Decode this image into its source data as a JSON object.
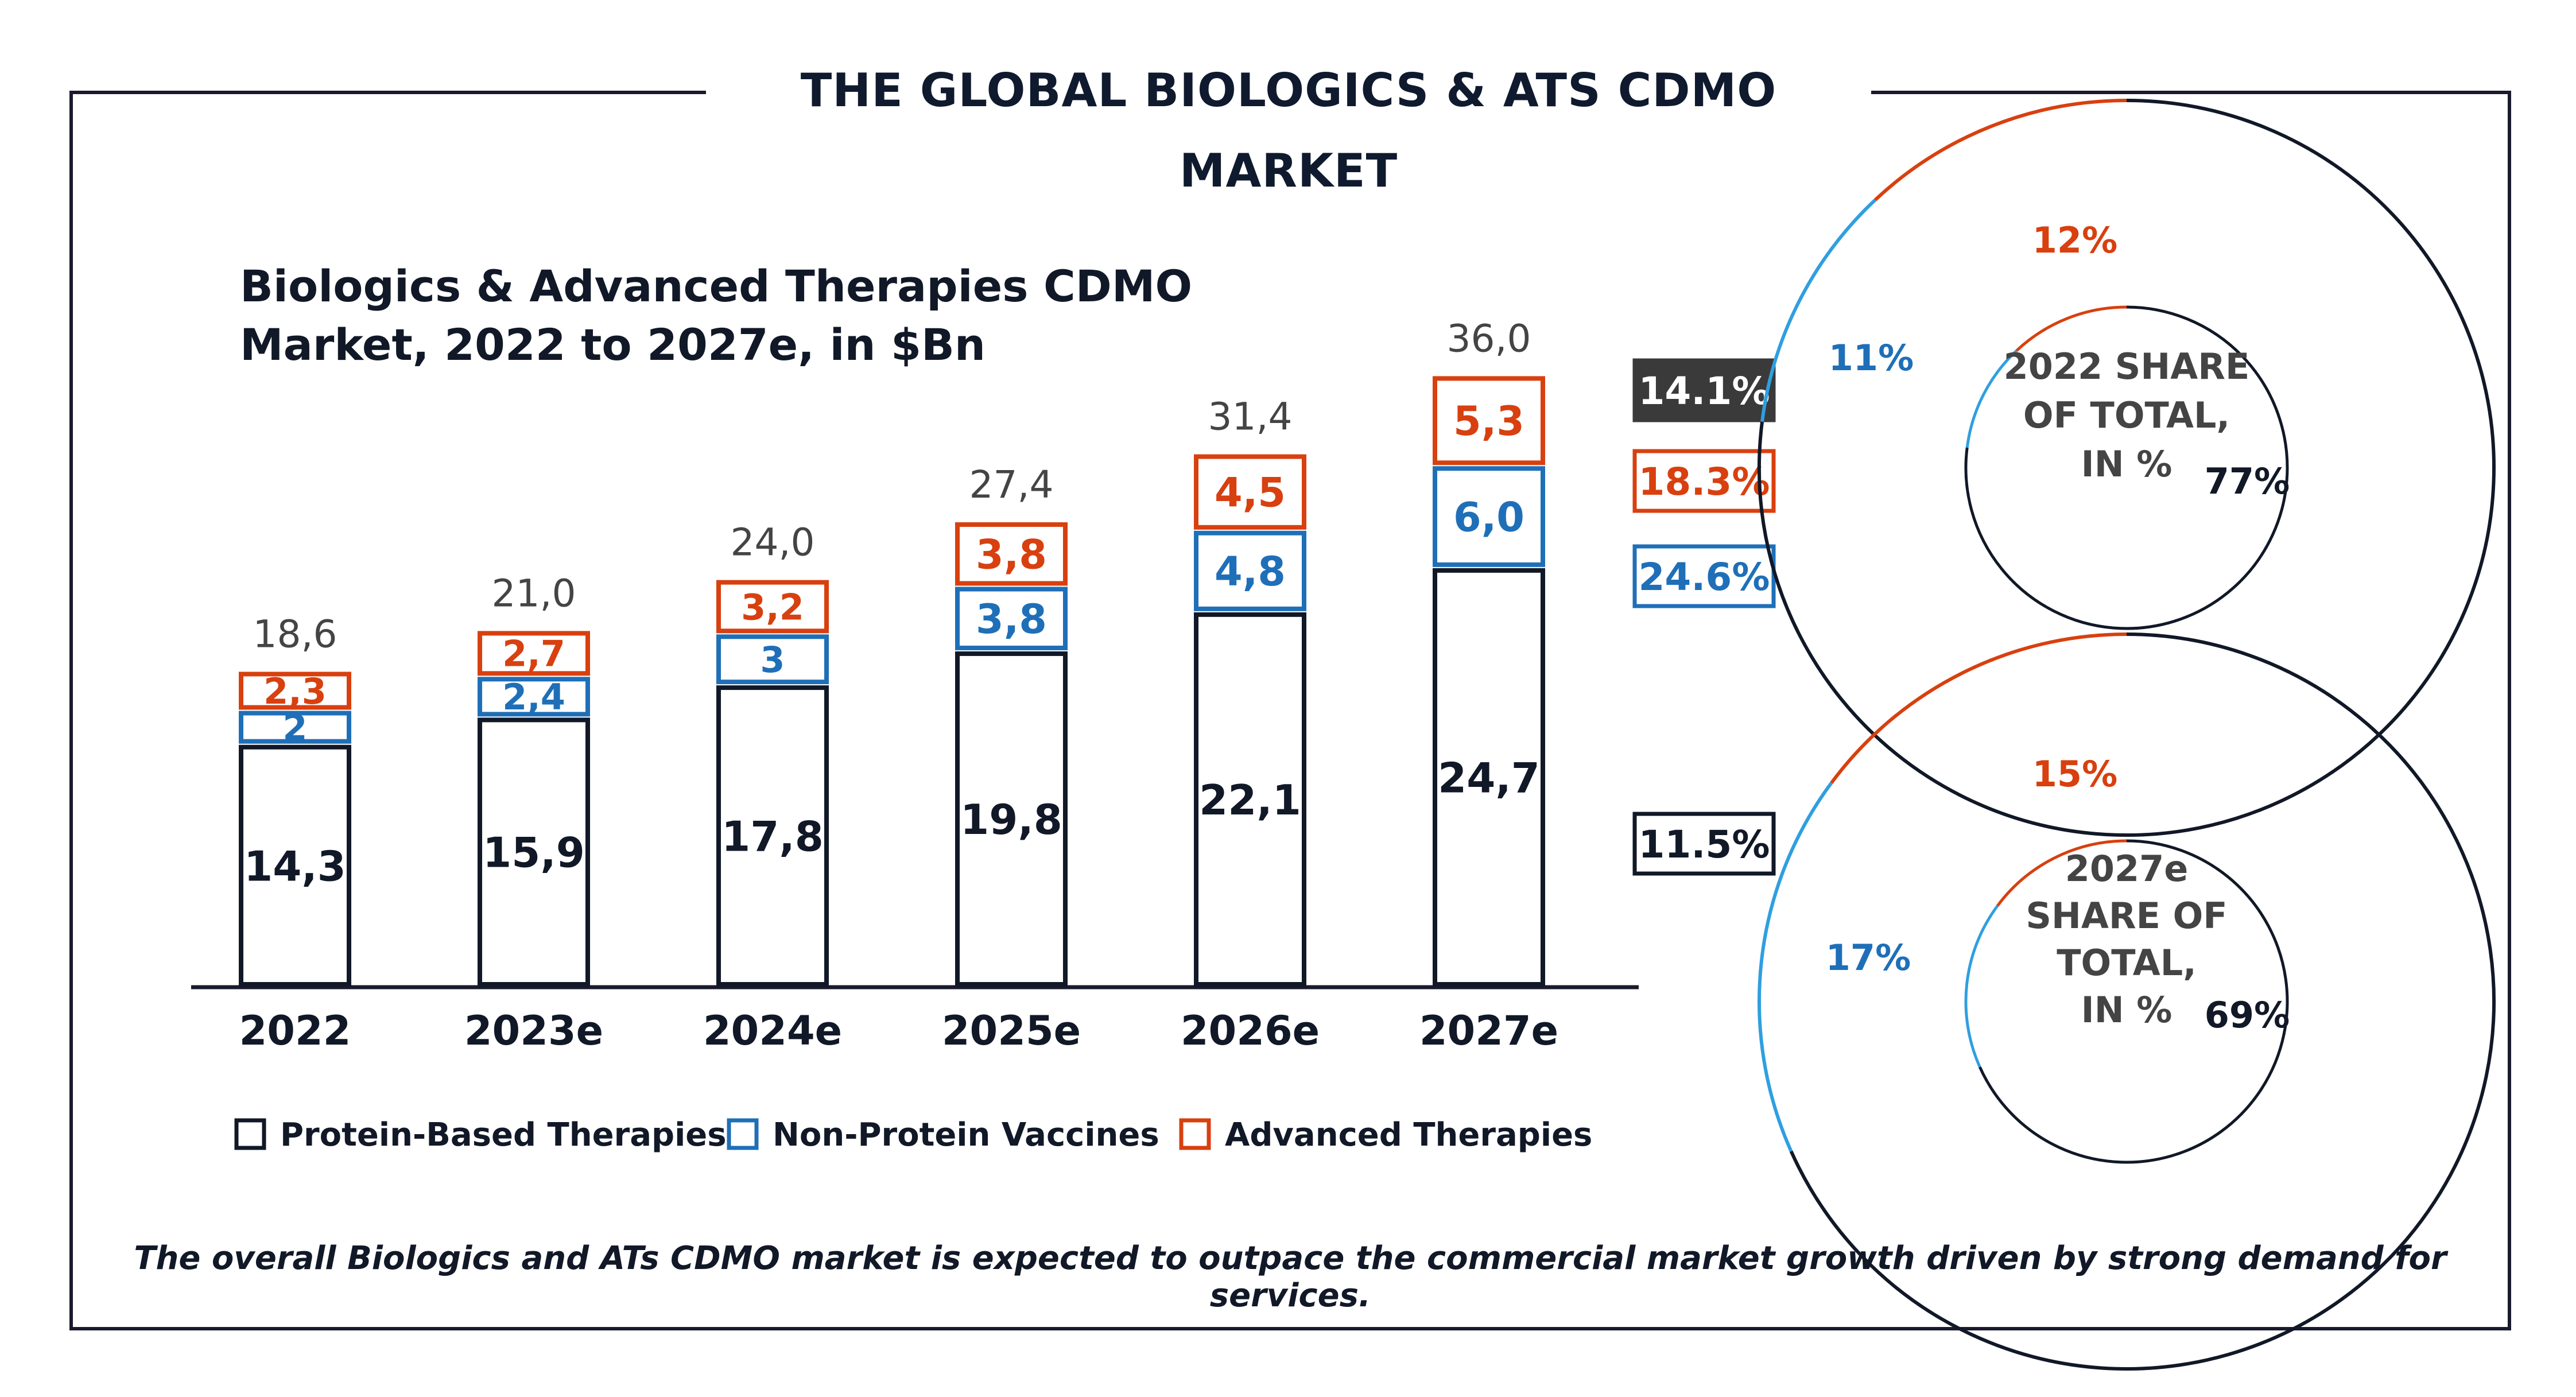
{
  "main_title": "THE GLOBAL BIOLOGICS & ATS CDMO MARKET",
  "footnote": "The overall Biologics and ATs CDMO market is expected to outpace the commercial market growth driven by strong demand for services.",
  "colors": {
    "protein": "#111827",
    "vaccine": "#1f6fb8",
    "advanced": "#d8400f",
    "total_text": "#444444",
    "cagr_total_bg": "#3a3a3a",
    "light_blue_arc": "#2f9fe0"
  },
  "chart_data": [
    {
      "type": "bar",
      "stacked": true,
      "title": "Biologics & Advanced Therapies CDMO Market, 2022 to 2027e, in $Bn",
      "title_lines": [
        "Biologics & Advanced Therapies CDMO",
        "Market, 2022 to 2027e, in $Bn"
      ],
      "categories": [
        "2022",
        "2023e",
        "2024e",
        "2025e",
        "2026e",
        "2027e"
      ],
      "series": [
        {
          "name": "Protein-Based Therapies",
          "values": [
            14.3,
            15.9,
            17.8,
            19.8,
            22.1,
            24.7
          ],
          "labels": [
            "14,3",
            "15,9",
            "17,8",
            "19,8",
            "22,1",
            "24,7"
          ]
        },
        {
          "name": "Non-Protein Vaccines",
          "values": [
            2,
            2.4,
            3,
            3.8,
            4.8,
            6.0
          ],
          "labels": [
            "2",
            "2,4",
            "3",
            "3,8",
            "4,8",
            "6,0"
          ]
        },
        {
          "name": "Advanced Therapies",
          "values": [
            2.3,
            2.7,
            3.2,
            3.8,
            4.5,
            5.3
          ],
          "labels": [
            "2,3",
            "2,7",
            "3,2",
            "3,8",
            "4,5",
            "5,3"
          ]
        }
      ],
      "totals": [
        "18,6",
        "21,0",
        "24,0",
        "27,4",
        "31,4",
        "36,0"
      ],
      "cagr": {
        "total": "14.1%",
        "advanced": "18.3%",
        "vaccine": "24.6%",
        "protein": "11.5%"
      },
      "legend": [
        "Protein-Based Therapies",
        "Non-Protein Vaccines",
        "Advanced Therapies"
      ],
      "legend_position": "bottom",
      "grid": false
    },
    {
      "type": "pie",
      "donut": true,
      "center_label_lines": [
        "2022 SHARE",
        "OF TOTAL,",
        "IN %"
      ],
      "slices": [
        {
          "series": "Protein-Based Therapies",
          "value": 77,
          "label": "77%"
        },
        {
          "series": "Non-Protein Vaccines",
          "value": 11,
          "label": "11%"
        },
        {
          "series": "Advanced Therapies",
          "value": 12,
          "label": "12%"
        }
      ]
    },
    {
      "type": "pie",
      "donut": true,
      "center_label_lines": [
        "2027e",
        "SHARE OF",
        "TOTAL,",
        "IN %"
      ],
      "slices": [
        {
          "series": "Protein-Based Therapies",
          "value": 69,
          "label": "69%"
        },
        {
          "series": "Non-Protein Vaccines",
          "value": 17,
          "label": "17%"
        },
        {
          "series": "Advanced Therapies",
          "value": 15,
          "label": "15%"
        }
      ]
    }
  ]
}
